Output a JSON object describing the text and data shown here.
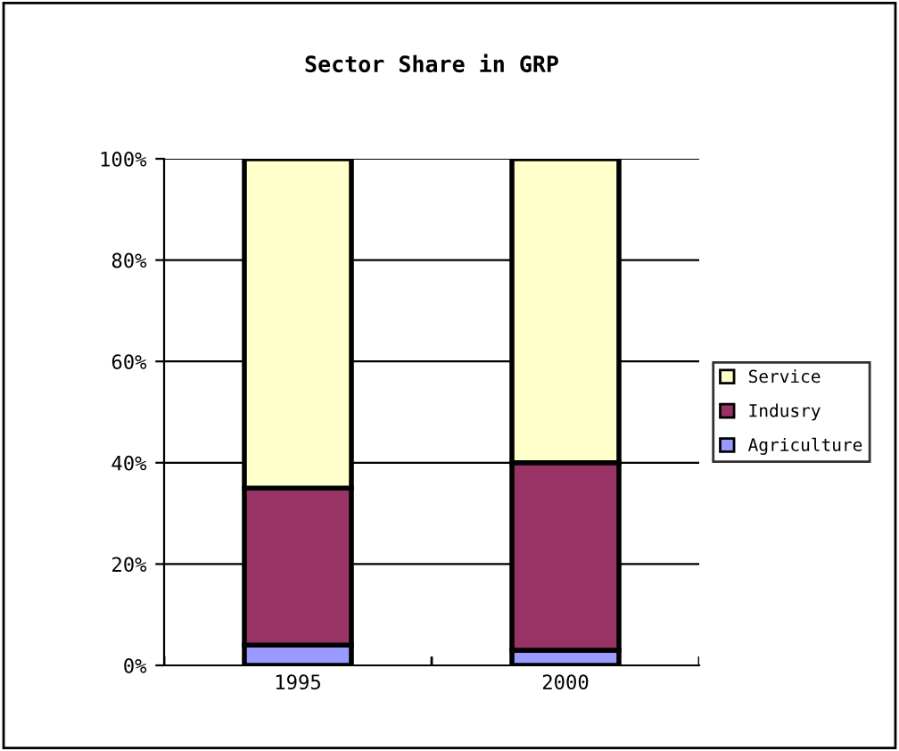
{
  "chart_data": {
    "type": "bar",
    "title": "Sector Share in GRP",
    "stacked": true,
    "categories": [
      "1995",
      "2000"
    ],
    "series": [
      {
        "name": "Agriculture",
        "color": "#9999ff",
        "values": [
          4,
          3
        ]
      },
      {
        "name": "Indusry",
        "color": "#993366",
        "values": [
          31,
          37
        ]
      },
      {
        "name": "Service",
        "color": "#ffffcc",
        "values": [
          65,
          60
        ]
      }
    ],
    "ylim": [
      0,
      100
    ],
    "yticks": [
      {
        "value": 0,
        "label": "0%"
      },
      {
        "value": 20,
        "label": "20%"
      },
      {
        "value": 40,
        "label": "40%"
      },
      {
        "value": 60,
        "label": "60%"
      },
      {
        "value": 80,
        "label": "80%"
      },
      {
        "value": 100,
        "label": "100%"
      }
    ],
    "grid": "y",
    "legend": "right"
  }
}
